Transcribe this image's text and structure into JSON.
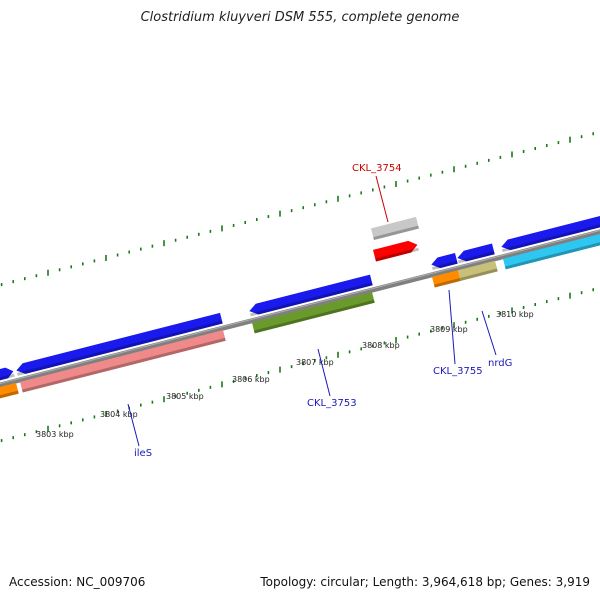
{
  "title": "Clostridium kluyveri DSM 555, complete genome",
  "footer": {
    "accession": "Accession: NC_009706",
    "stats": "Topology: circular; Length: 3,964,618 bp; Genes: 3,919"
  },
  "colors": {
    "backbone": "#808080",
    "tick": "#1a7a1a",
    "blue": "#1a1aee",
    "salmon": "#f08a8a",
    "olive": "#6b9a2c",
    "orange": "#ff8c00",
    "khaki": "#c8c078",
    "cyan": "#2ec7f2",
    "red": "#ff0000",
    "grey": "#c8c8c8",
    "label_blue": "#1a1ab8",
    "label_red": "#cc0000"
  },
  "axis": {
    "tick_labels": [
      "3803 kbp",
      "3804 kbp",
      "3805 kbp",
      "3806 kbp",
      "3807 kbp",
      "3808 kbp",
      "3809 kbp",
      "3810 kbp"
    ]
  },
  "genes": [
    {
      "label": "CKL_3754",
      "color": "label_red"
    },
    {
      "label": "CKL_3753",
      "color": "label_blue"
    },
    {
      "label": "CKL_3755",
      "color": "label_blue"
    },
    {
      "label": "nrdG",
      "color": "label_blue"
    },
    {
      "label": "ileS",
      "color": "label_blue"
    }
  ]
}
